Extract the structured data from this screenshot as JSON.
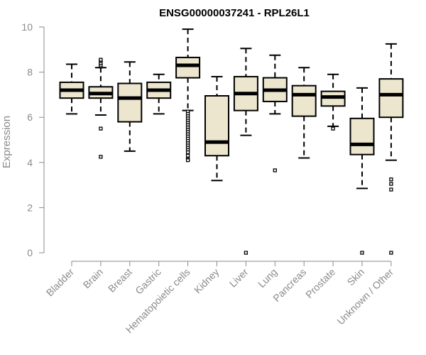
{
  "chart_data": {
    "type": "box",
    "title": "ENSG00000037241 - RPL26L1",
    "ylabel": "Expression",
    "xlabel": "",
    "ylim": [
      0,
      10
    ],
    "yticks": [
      0,
      2,
      4,
      6,
      8,
      10
    ],
    "colors": {
      "box_fill": "#ede6cf",
      "box_stroke": "#000000",
      "axis": "#8a8a8a"
    },
    "categories": [
      "Bladder",
      "Brain",
      "Breast",
      "Gastric",
      "Hematopoietic cells",
      "Kidney",
      "Liver",
      "Lung",
      "Pancreas",
      "Prostate",
      "Skin",
      "Unknown / Other"
    ],
    "boxes": [
      {
        "name": "Bladder",
        "whisker_low": 6.15,
        "q1": 6.85,
        "median": 7.2,
        "q3": 7.55,
        "whisker_high": 8.35,
        "outliers": []
      },
      {
        "name": "Brain",
        "whisker_low": 6.1,
        "q1": 6.85,
        "median": 7.05,
        "q3": 7.35,
        "whisker_high": 8.2,
        "outliers": [
          8.25,
          8.3,
          8.4,
          8.5,
          8.55,
          5.5,
          4.25
        ]
      },
      {
        "name": "Breast",
        "whisker_low": 4.5,
        "q1": 5.8,
        "median": 6.85,
        "q3": 7.5,
        "whisker_high": 8.45,
        "outliers": []
      },
      {
        "name": "Gastric",
        "whisker_low": 6.15,
        "q1": 6.85,
        "median": 7.2,
        "q3": 7.55,
        "whisker_high": 7.9,
        "outliers": []
      },
      {
        "name": "Hematopoietic cells",
        "whisker_low": 6.3,
        "q1": 7.75,
        "median": 8.3,
        "q3": 8.65,
        "whisker_high": 9.9,
        "outliers": [
          6.25,
          6.15,
          6.05,
          5.95,
          5.85,
          5.75,
          5.65,
          5.55,
          5.45,
          5.35,
          5.25,
          5.15,
          5.05,
          4.95,
          4.85,
          4.75,
          4.65,
          4.55,
          4.45,
          4.3,
          4.15,
          4.1
        ]
      },
      {
        "name": "Kidney",
        "whisker_low": 3.2,
        "q1": 4.3,
        "median": 4.9,
        "q3": 6.95,
        "whisker_high": 7.8,
        "outliers": []
      },
      {
        "name": "Liver",
        "whisker_low": 5.2,
        "q1": 6.3,
        "median": 7.05,
        "q3": 7.8,
        "whisker_high": 9.05,
        "outliers": [
          0.0
        ]
      },
      {
        "name": "Lung",
        "whisker_low": 6.15,
        "q1": 6.7,
        "median": 7.2,
        "q3": 7.75,
        "whisker_high": 8.75,
        "outliers": [
          3.65
        ]
      },
      {
        "name": "Pancreas",
        "whisker_low": 4.2,
        "q1": 6.05,
        "median": 7.0,
        "q3": 7.4,
        "whisker_high": 8.2,
        "outliers": []
      },
      {
        "name": "Prostate",
        "whisker_low": 5.6,
        "q1": 6.5,
        "median": 6.9,
        "q3": 7.15,
        "whisker_high": 7.9,
        "outliers": [
          5.5
        ]
      },
      {
        "name": "Skin",
        "whisker_low": 2.85,
        "q1": 4.35,
        "median": 4.8,
        "q3": 5.95,
        "whisker_high": 7.3,
        "outliers": [
          0.0
        ]
      },
      {
        "name": "Unknown / Other",
        "whisker_low": 4.1,
        "q1": 6.0,
        "median": 7.0,
        "q3": 7.7,
        "whisker_high": 9.25,
        "outliers": [
          3.25,
          3.05,
          2.8,
          0.0
        ]
      }
    ]
  }
}
